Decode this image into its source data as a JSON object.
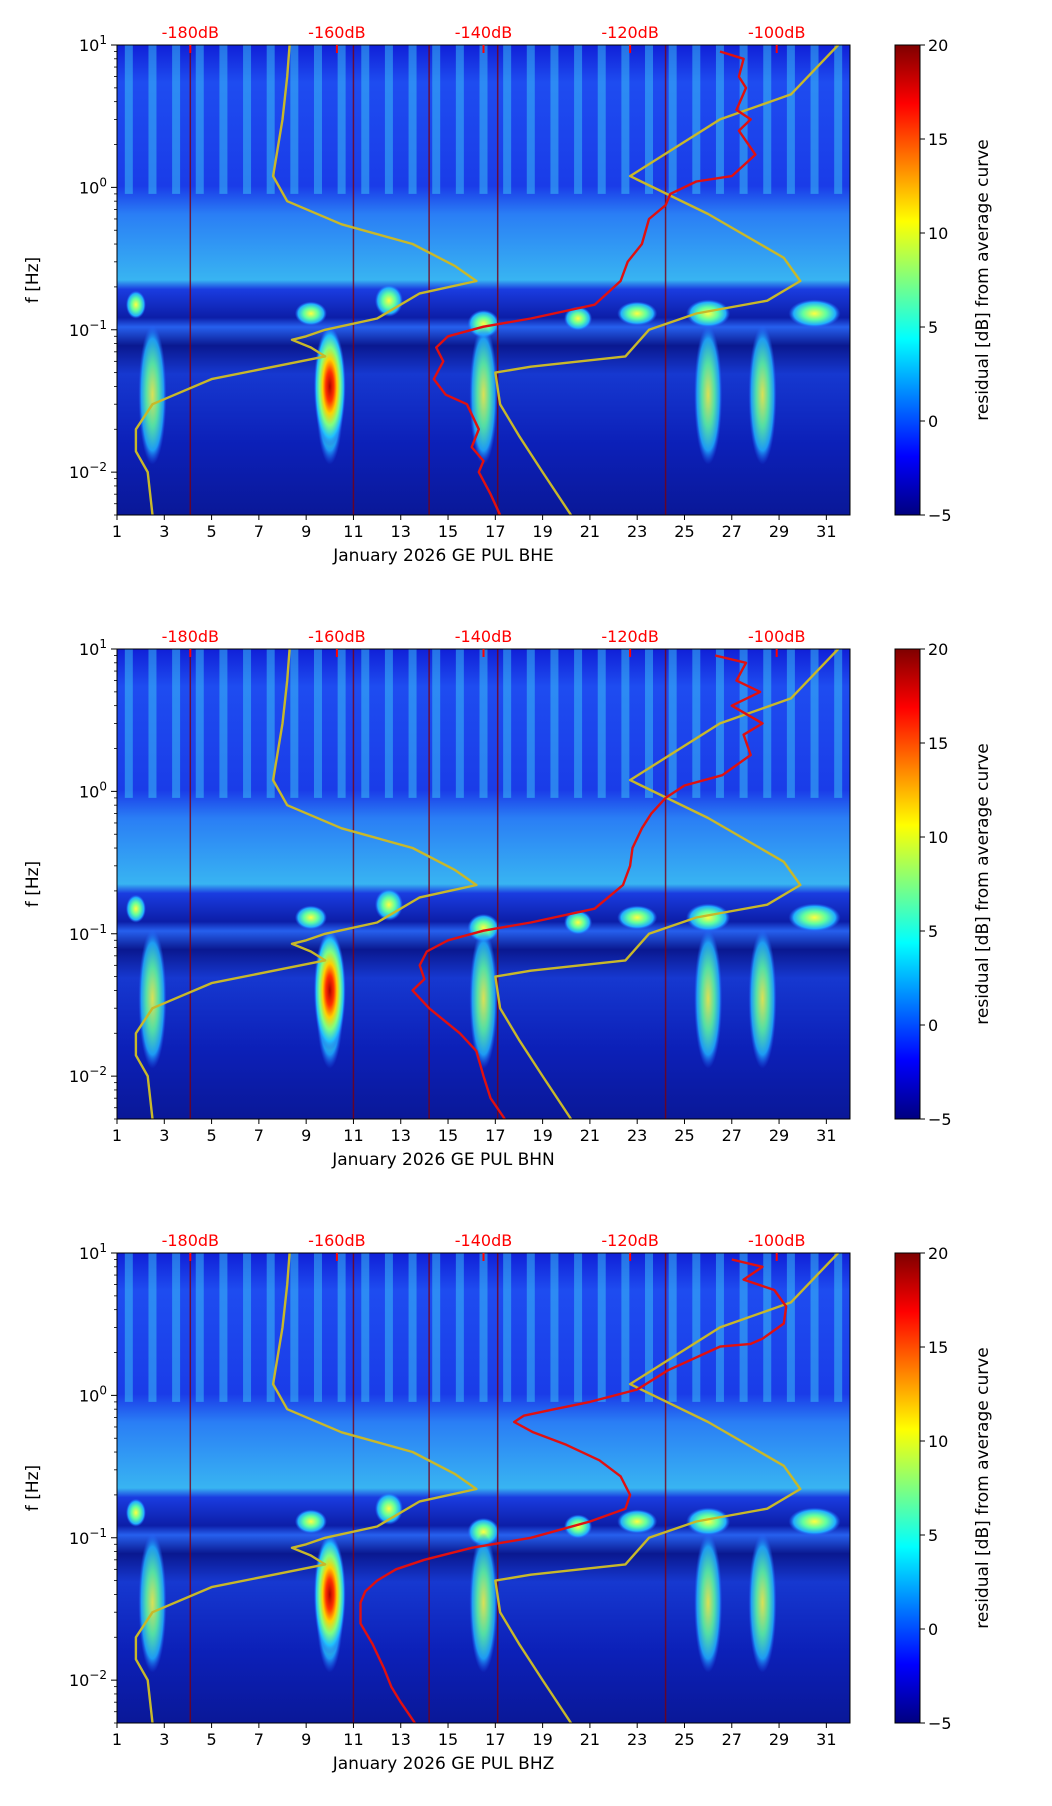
{
  "colors": {
    "accent_red": "#ff0000",
    "model_curve": "#c8b82a",
    "noise_curve": "#e01010",
    "background": "#ffffff"
  },
  "colorbar": {
    "label": "residual [dB] from average curve",
    "ticks": [
      "20",
      "15",
      "10",
      "5",
      "0",
      "−5"
    ],
    "range": [
      -5,
      20
    ],
    "stops": [
      "#00007f",
      "#0000ff",
      "#007fff",
      "#00ffff",
      "#7fff7f",
      "#ffff00",
      "#ff7f00",
      "#ff0000",
      "#7f0000"
    ]
  },
  "chart_data": [
    {
      "type": "heatmap",
      "title": "",
      "xlabel": "January 2026 GE PUL  BHE",
      "ylabel": "f [Hz]",
      "xlim": [
        1,
        32
      ],
      "ylim": [
        0.005,
        10
      ],
      "yscale": "log",
      "x_ticks": [
        "1",
        "3",
        "5",
        "7",
        "9",
        "11",
        "13",
        "15",
        "17",
        "19",
        "21",
        "23",
        "25",
        "27",
        "29",
        "31"
      ],
      "y_ticks": [
        {
          "base": "10",
          "exp": "1",
          "value": 10
        },
        {
          "base": "10",
          "exp": "0",
          "value": 1
        },
        {
          "base": "10",
          "exp": "−1",
          "value": 0.1
        },
        {
          "base": "10",
          "exp": "−2",
          "value": 0.01
        }
      ],
      "top_labels": [
        "-180dB",
        "-160dB",
        "-140dB",
        "-120dB",
        "-100dB"
      ],
      "top_label_days": [
        4.1,
        10.3,
        16.5,
        22.7,
        28.9
      ],
      "series": [
        {
          "name": "noise-model-curve",
          "x": [
            8.3,
            8.2,
            8.0,
            7.6,
            8.2,
            10.5,
            13.5,
            15.3,
            16.2,
            13.8,
            12.0,
            9.8,
            9.0,
            8.4,
            9.2,
            9.8,
            5.0,
            2.5,
            1.8,
            1.8,
            2.3,
            2.5
          ],
          "y": [
            10,
            6,
            3,
            1.2,
            0.8,
            0.55,
            0.4,
            0.28,
            0.22,
            0.18,
            0.12,
            0.1,
            0.09,
            0.085,
            0.075,
            0.065,
            0.045,
            0.03,
            0.02,
            0.014,
            0.01,
            0.005
          ]
        },
        {
          "name": "noise-model-curve",
          "x": [
            31.5,
            29.5,
            26.5,
            22.7,
            26.0,
            29.2,
            29.9,
            28.5,
            25.5,
            23.5,
            22.5,
            18.5,
            17.0,
            17.2,
            18.0,
            19.0,
            20.2
          ],
          "y": [
            10,
            4.5,
            3.0,
            1.2,
            0.65,
            0.32,
            0.22,
            0.16,
            0.13,
            0.1,
            0.065,
            0.055,
            0.05,
            0.03,
            0.018,
            0.01,
            0.005
          ]
        },
        {
          "name": "station-noise-curve",
          "x": [
            26.5,
            27.5,
            27.3,
            27.6,
            27.2,
            27.8,
            27.3,
            28.0,
            27.0,
            25.5,
            24.4,
            24.2,
            23.5,
            23.2,
            22.6,
            22.3,
            21.2,
            18.5,
            16.5,
            15.0,
            14.5,
            14.8,
            14.4,
            14.9,
            15.8,
            16.3,
            16.0,
            16.5,
            16.3,
            16.8,
            17.2
          ],
          "y": [
            9,
            8,
            6,
            5,
            3.5,
            3,
            2.5,
            1.7,
            1.2,
            1.1,
            0.9,
            0.75,
            0.6,
            0.4,
            0.3,
            0.22,
            0.15,
            0.12,
            0.105,
            0.09,
            0.075,
            0.06,
            0.045,
            0.035,
            0.03,
            0.02,
            0.015,
            0.012,
            0.01,
            0.007,
            0.005
          ]
        }
      ]
    },
    {
      "type": "heatmap",
      "title": "",
      "xlabel": "January 2026 GE PUL  BHN",
      "ylabel": "f [Hz]",
      "xlim": [
        1,
        32
      ],
      "ylim": [
        0.005,
        10
      ],
      "yscale": "log",
      "x_ticks": [
        "1",
        "3",
        "5",
        "7",
        "9",
        "11",
        "13",
        "15",
        "17",
        "19",
        "21",
        "23",
        "25",
        "27",
        "29",
        "31"
      ],
      "y_ticks": [
        {
          "base": "10",
          "exp": "1",
          "value": 10
        },
        {
          "base": "10",
          "exp": "0",
          "value": 1
        },
        {
          "base": "10",
          "exp": "−1",
          "value": 0.1
        },
        {
          "base": "10",
          "exp": "−2",
          "value": 0.01
        }
      ],
      "top_labels": [
        "-180dB",
        "-160dB",
        "-140dB",
        "-120dB",
        "-100dB"
      ],
      "top_label_days": [
        4.1,
        10.3,
        16.5,
        22.7,
        28.9
      ],
      "series": [
        {
          "name": "noise-model-curve",
          "x": [
            8.3,
            8.2,
            8.0,
            7.6,
            8.2,
            10.5,
            13.5,
            15.3,
            16.2,
            13.8,
            12.0,
            9.8,
            9.0,
            8.4,
            9.2,
            9.8,
            5.0,
            2.5,
            1.8,
            1.8,
            2.3,
            2.5
          ],
          "y": [
            10,
            6,
            3,
            1.2,
            0.8,
            0.55,
            0.4,
            0.28,
            0.22,
            0.18,
            0.12,
            0.1,
            0.09,
            0.085,
            0.075,
            0.065,
            0.045,
            0.03,
            0.02,
            0.014,
            0.01,
            0.005
          ]
        },
        {
          "name": "noise-model-curve",
          "x": [
            31.5,
            29.5,
            26.5,
            22.7,
            26.0,
            29.2,
            29.9,
            28.5,
            25.5,
            23.5,
            22.5,
            18.5,
            17.0,
            17.2,
            18.0,
            19.0,
            20.2
          ],
          "y": [
            10,
            4.5,
            3.0,
            1.2,
            0.65,
            0.32,
            0.22,
            0.16,
            0.13,
            0.1,
            0.065,
            0.055,
            0.05,
            0.03,
            0.018,
            0.01,
            0.005
          ]
        },
        {
          "name": "station-noise-curve",
          "x": [
            26.3,
            27.6,
            27.2,
            28.2,
            27.0,
            28.3,
            27.5,
            27.8,
            26.6,
            25.0,
            24.2,
            23.6,
            23.2,
            22.8,
            22.7,
            22.4,
            21.2,
            18.5,
            16.5,
            15.0,
            14.1,
            13.8,
            14.0,
            13.5,
            14.2,
            15.5,
            16.2,
            16.5,
            16.8,
            17.4
          ],
          "y": [
            9,
            8,
            6,
            5,
            4,
            3,
            2.5,
            1.8,
            1.3,
            1.1,
            0.9,
            0.7,
            0.55,
            0.4,
            0.3,
            0.22,
            0.15,
            0.12,
            0.105,
            0.09,
            0.075,
            0.06,
            0.048,
            0.04,
            0.03,
            0.02,
            0.015,
            0.01,
            0.007,
            0.005
          ]
        }
      ]
    },
    {
      "type": "heatmap",
      "title": "",
      "xlabel": "January 2026 GE PUL  BHZ",
      "ylabel": "f [Hz]",
      "xlim": [
        1,
        32
      ],
      "ylim": [
        0.005,
        10
      ],
      "yscale": "log",
      "x_ticks": [
        "1",
        "3",
        "5",
        "7",
        "9",
        "11",
        "13",
        "15",
        "17",
        "19",
        "21",
        "23",
        "25",
        "27",
        "29",
        "31"
      ],
      "y_ticks": [
        {
          "base": "10",
          "exp": "1",
          "value": 10
        },
        {
          "base": "10",
          "exp": "0",
          "value": 1
        },
        {
          "base": "10",
          "exp": "−1",
          "value": 0.1
        },
        {
          "base": "10",
          "exp": "−2",
          "value": 0.01
        }
      ],
      "top_labels": [
        "-180dB",
        "-160dB",
        "-140dB",
        "-120dB",
        "-100dB"
      ],
      "top_label_days": [
        4.1,
        10.3,
        16.5,
        22.7,
        28.9
      ],
      "series": [
        {
          "name": "noise-model-curve",
          "x": [
            8.3,
            8.2,
            8.0,
            7.6,
            8.2,
            10.5,
            13.5,
            15.3,
            16.2,
            13.8,
            12.0,
            9.8,
            9.0,
            8.4,
            9.2,
            9.8,
            5.0,
            2.5,
            1.8,
            1.8,
            2.3,
            2.5
          ],
          "y": [
            10,
            6,
            3,
            1.2,
            0.8,
            0.55,
            0.4,
            0.28,
            0.22,
            0.18,
            0.12,
            0.1,
            0.09,
            0.085,
            0.075,
            0.065,
            0.045,
            0.03,
            0.02,
            0.014,
            0.01,
            0.005
          ]
        },
        {
          "name": "noise-model-curve",
          "x": [
            31.5,
            29.5,
            26.5,
            22.7,
            26.0,
            29.2,
            29.9,
            28.5,
            25.5,
            23.5,
            22.5,
            18.5,
            17.0,
            17.2,
            18.0,
            19.0,
            20.2
          ],
          "y": [
            10,
            4.5,
            3.0,
            1.2,
            0.65,
            0.32,
            0.22,
            0.16,
            0.13,
            0.1,
            0.065,
            0.055,
            0.05,
            0.03,
            0.018,
            0.01,
            0.005
          ]
        },
        {
          "name": "station-noise-curve",
          "x": [
            27.0,
            28.3,
            27.5,
            28.8,
            29.3,
            29.2,
            28.3,
            27.8,
            26.5,
            24.3,
            23.0,
            21.0,
            19.5,
            18.2,
            17.8,
            18.6,
            20.0,
            21.4,
            22.3,
            22.7,
            22.5,
            21.0,
            18.5,
            16.0,
            14.0,
            12.8,
            12.0,
            11.5,
            11.3,
            11.3,
            11.8,
            12.3,
            12.6,
            13.0,
            13.6
          ],
          "y": [
            9,
            8,
            6.5,
            5.5,
            4.2,
            3.2,
            2.5,
            2.3,
            2.2,
            1.5,
            1.1,
            0.9,
            0.8,
            0.72,
            0.65,
            0.55,
            0.45,
            0.35,
            0.27,
            0.2,
            0.16,
            0.13,
            0.1,
            0.085,
            0.07,
            0.06,
            0.05,
            0.042,
            0.035,
            0.025,
            0.018,
            0.012,
            0.009,
            0.007,
            0.005
          ]
        }
      ]
    }
  ]
}
